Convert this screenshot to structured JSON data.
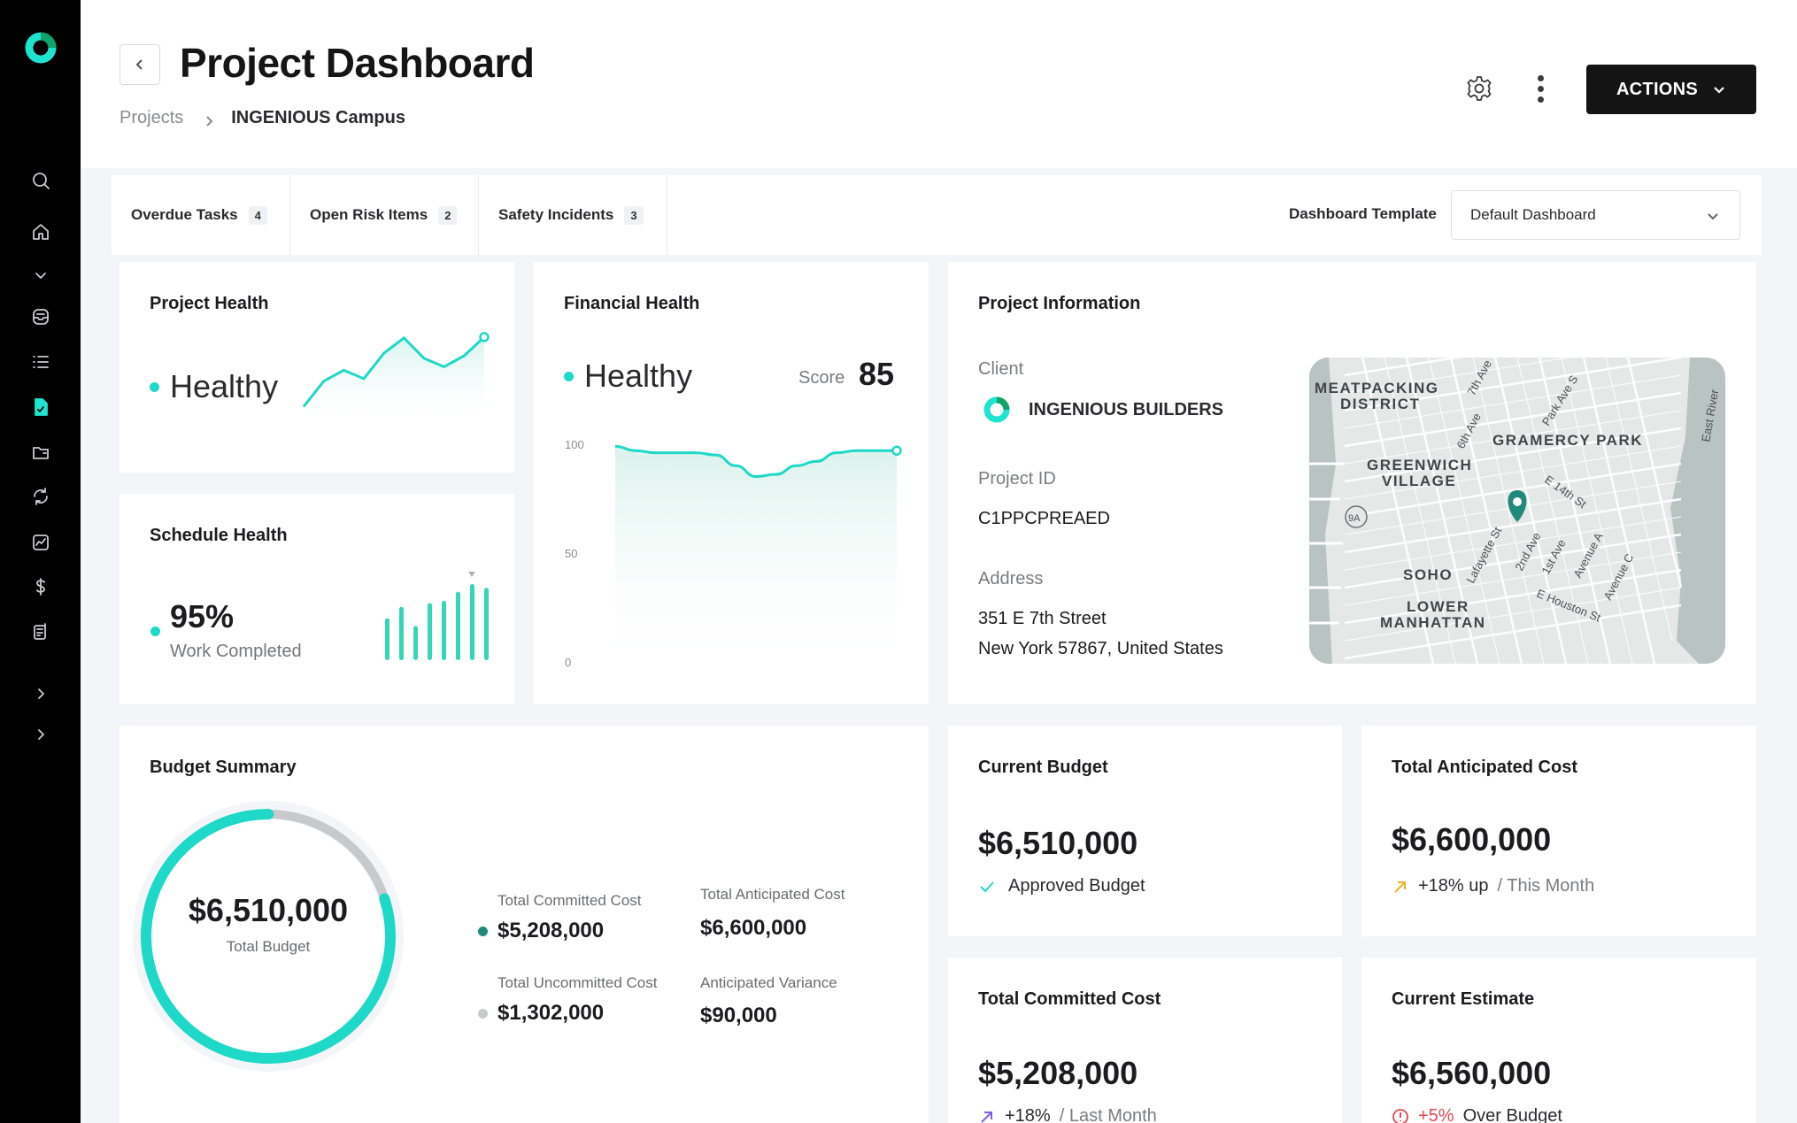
{
  "sidebar": {
    "logo": "app-logo",
    "icons": [
      "search-icon",
      "home-icon",
      "chevron-down-icon",
      "inbox-icon",
      "list-icon",
      "document-icon",
      "folder-icon",
      "sync-icon",
      "chart-icon",
      "dollar-icon",
      "report-icon",
      "chevron-right-icon",
      "chevron-right-icon"
    ],
    "accent": "#1ee3cf"
  },
  "header": {
    "title": "Project Dashboard",
    "breadcrumb": {
      "parent": "Projects",
      "current": "INGENIOUS Campus"
    },
    "actions_label": "ACTIONS"
  },
  "filters": {
    "tabs": [
      {
        "label": "Overdue Tasks",
        "count": "4"
      },
      {
        "label": "Open Risk Items",
        "count": "2"
      },
      {
        "label": "Safety Incidents",
        "count": "3"
      }
    ],
    "template_label": "Dashboard Template",
    "template_value": "Default Dashboard"
  },
  "project_health": {
    "title": "Project Health",
    "status": "Healthy",
    "trend": [
      0.15,
      0.45,
      0.58,
      0.48,
      0.78,
      0.96,
      0.72,
      0.62,
      0.75,
      0.97
    ]
  },
  "schedule_health": {
    "title": "Schedule Health",
    "percent": "95%",
    "caption": "Work Completed",
    "bars": [
      0.55,
      0.7,
      0.45,
      0.75,
      0.78,
      0.9,
      1.0,
      0.95
    ]
  },
  "financial_health": {
    "title": "Financial Health",
    "status": "Healthy",
    "score_label": "Score",
    "score": "85",
    "axis": [
      "100",
      "50",
      "0"
    ],
    "chart_data": {
      "type": "area",
      "ylim": [
        0,
        100
      ],
      "values": [
        97,
        95,
        94,
        94,
        94,
        93,
        88,
        83,
        84,
        88,
        90,
        94,
        95,
        95,
        95
      ]
    }
  },
  "project_info": {
    "title": "Project Information",
    "client_label": "Client",
    "client_name": "INGENIOUS BUILDERS",
    "id_label": "Project ID",
    "id_value": "C1PPCPREAED",
    "address_label": "Address",
    "address_line1": "351 E 7th Street",
    "address_line2": "New York 57867, United States",
    "map_labels": [
      "MEATPACKING",
      "DISTRICT",
      "GRAMERCY PARK",
      "GREENWICH",
      "VILLAGE",
      "SOHO",
      "LOWER",
      "MANHATTAN",
      "East River",
      "7th Ave",
      "6th Ave",
      "Park Ave S",
      "E 14th St",
      "2nd Ave",
      "1st Ave",
      "Avenue A",
      "Avenue C",
      "Lafayette St",
      "E Houston St",
      "9A"
    ]
  },
  "budget_summary": {
    "title": "Budget Summary",
    "total_value": "$6,510,000",
    "total_label": "Total Budget",
    "committed_fraction": 0.8,
    "items": {
      "committed_label": "Total Committed Cost",
      "committed_value": "$5,208,000",
      "uncommitted_label": "Total Uncommitted Cost",
      "uncommitted_value": "$1,302,000",
      "anticipated_label": "Total Anticipated Cost",
      "anticipated_value": "$6,600,000",
      "variance_label": "Anticipated Variance",
      "variance_value": "$90,000"
    },
    "colors": {
      "committed": "#1ed8c8",
      "uncommitted": "#c8c9cd"
    }
  },
  "metrics": {
    "current_budget": {
      "title": "Current Budget",
      "value": "$6,510,000",
      "note": "Approved Budget"
    },
    "anticipated": {
      "title": "Total Anticipated Cost",
      "value": "$6,600,000",
      "change": "+18% up",
      "period": "/ This Month"
    },
    "committed": {
      "title": "Total Committed Cost",
      "value": "$5,208,000",
      "change": "+18%",
      "period": "/ Last Month"
    },
    "estimate": {
      "title": "Current Estimate",
      "value": "$6,560,000",
      "change": "+5%",
      "period": "Over Budget"
    }
  }
}
